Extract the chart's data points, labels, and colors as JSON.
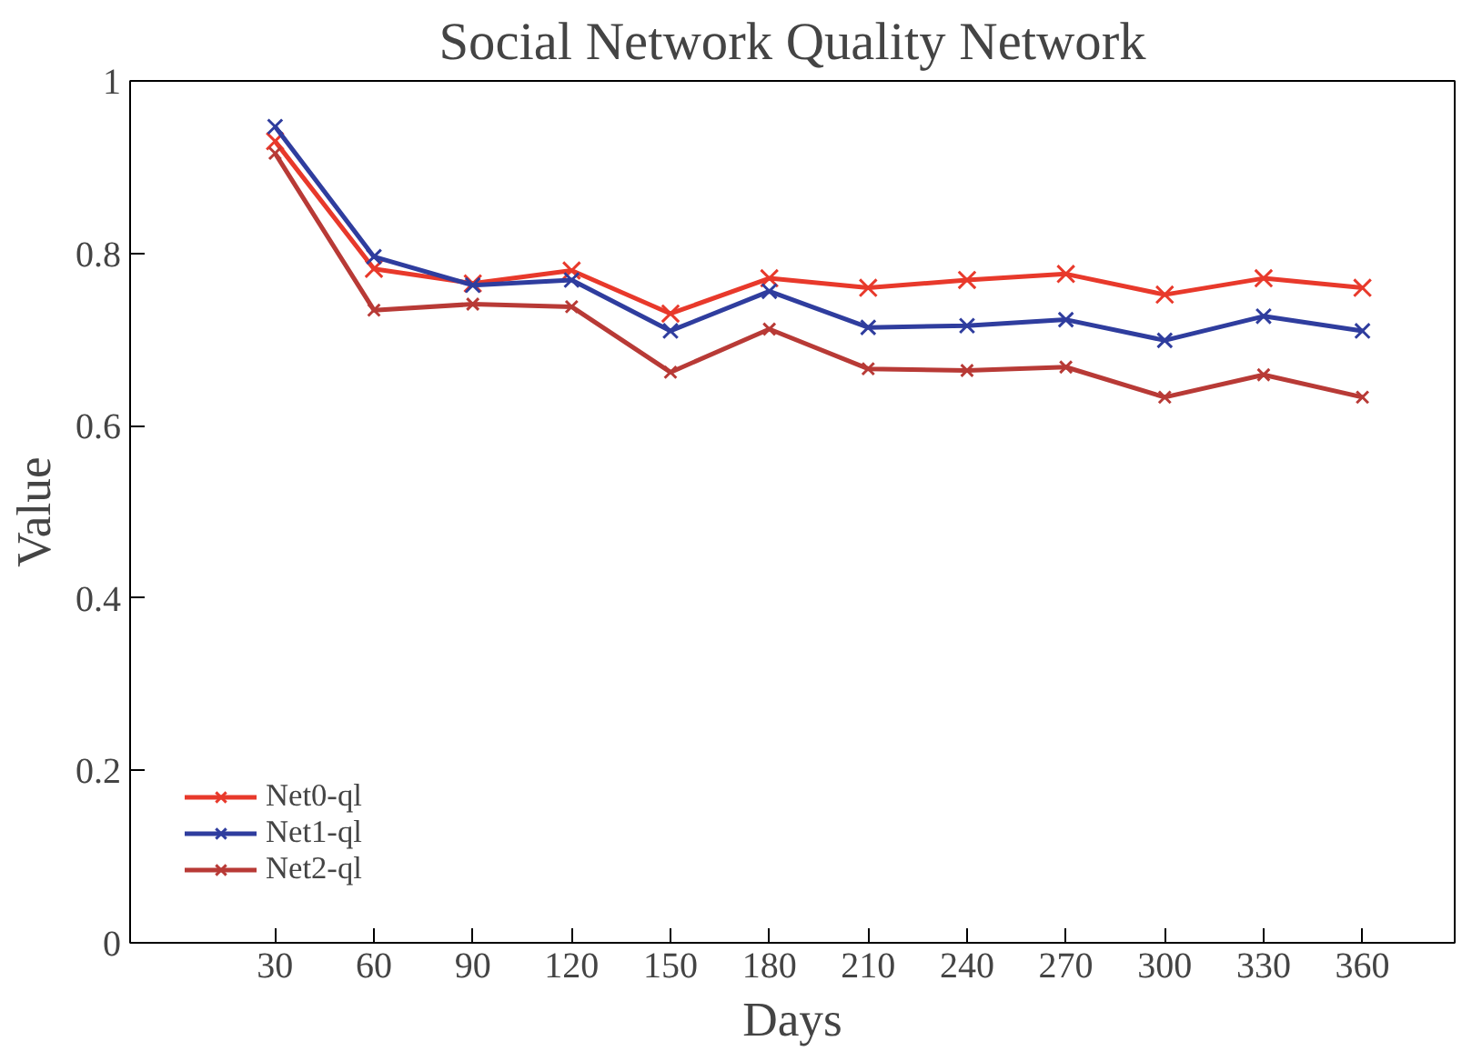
{
  "chart_data": {
    "type": "line",
    "title": "Social Network Quality Network",
    "xlabel": "Days",
    "ylabel": "Value",
    "x": [
      30,
      60,
      90,
      120,
      150,
      180,
      210,
      240,
      270,
      300,
      330,
      360
    ],
    "series": [
      {
        "name": "Net0-ql",
        "color": "#e8392b",
        "values": [
          0.93,
          0.782,
          0.765,
          0.78,
          0.73,
          0.771,
          0.76,
          0.769,
          0.776,
          0.752,
          0.771,
          0.76
        ]
      },
      {
        "name": "Net1-ql",
        "color": "#2f3d9e",
        "values": [
          0.947,
          0.796,
          0.763,
          0.769,
          0.71,
          0.756,
          0.714,
          0.716,
          0.723,
          0.699,
          0.727,
          0.71
        ]
      },
      {
        "name": "Net2-ql",
        "color": "#b83a36",
        "values": [
          0.916,
          0.734,
          0.741,
          0.738,
          0.662,
          0.712,
          0.666,
          0.664,
          0.668,
          0.633,
          0.659,
          0.633
        ]
      }
    ],
    "xlim": [
      -14,
      388
    ],
    "xticks": [
      30,
      60,
      90,
      120,
      150,
      180,
      210,
      240,
      270,
      300,
      330,
      360
    ],
    "ylim": [
      0,
      1
    ],
    "yticks": [
      0,
      {
        "value": 0.2,
        "label": "0.2"
      },
      {
        "value": 0.4,
        "label": "0.4"
      },
      {
        "value": 0.6,
        "label": "0.6"
      },
      {
        "value": 0.8,
        "label": "0.8"
      },
      1
    ],
    "grid": false,
    "legend": "bottom left",
    "marker": "cross",
    "line_style": "solid"
  }
}
